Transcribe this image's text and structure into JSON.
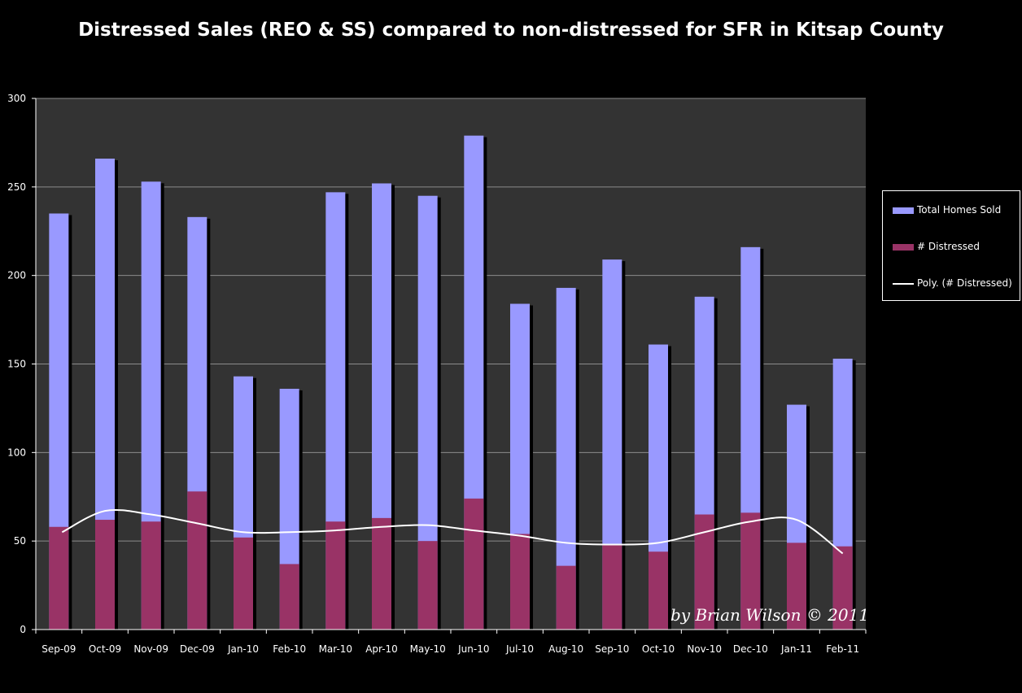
{
  "title": "Distressed Sales (REO & SS) compared to non-distressed for SFR in Kitsap County",
  "watermark": "by Brian Wilson © 2011",
  "legend": {
    "items": [
      {
        "label": "Total Homes Sold",
        "kind": "bar",
        "color": "#9999FF"
      },
      {
        "label": "# Distressed",
        "kind": "bar",
        "color": "#993366"
      },
      {
        "label": "Poly. (# Distressed)",
        "kind": "line",
        "color": "#FFFFFF"
      }
    ]
  },
  "colors": {
    "total": "#9999FF",
    "distressed": "#993366",
    "trend": "#FFFFFF",
    "plot_bg": "#333333",
    "grid": "#8C8C8C",
    "shadow": "#000000"
  },
  "chart_data": {
    "type": "bar",
    "title": "Distressed Sales (REO & SS) compared to non-distressed for SFR in Kitsap County",
    "xlabel": "",
    "ylabel": "",
    "ylim": [
      0,
      300
    ],
    "yticks": [
      0,
      50,
      100,
      150,
      200,
      250,
      300
    ],
    "grid": true,
    "legend_position": "right",
    "categories": [
      "Sep-09",
      "Oct-09",
      "Nov-09",
      "Dec-09",
      "Jan-10",
      "Feb-10",
      "Mar-10",
      "Apr-10",
      "May-10",
      "Jun-10",
      "Jul-10",
      "Aug-10",
      "Sep-10",
      "Oct-10",
      "Nov-10",
      "Dec-10",
      "Jan-11",
      "Feb-11"
    ],
    "series": [
      {
        "name": "Total Homes Sold",
        "type": "bar",
        "values": [
          235,
          266,
          253,
          233,
          143,
          136,
          247,
          252,
          245,
          279,
          184,
          193,
          209,
          161,
          188,
          216,
          127,
          153
        ]
      },
      {
        "name": "# Distressed",
        "type": "bar",
        "values": [
          58,
          62,
          61,
          78,
          52,
          37,
          61,
          63,
          50,
          74,
          54,
          36,
          48,
          44,
          65,
          66,
          49,
          47
        ]
      },
      {
        "name": "Poly. (# Distressed)",
        "type": "line",
        "values": [
          55,
          67,
          65,
          60,
          55,
          55,
          56,
          58,
          59,
          56,
          53,
          49,
          48,
          49,
          55,
          61,
          62,
          43
        ]
      }
    ]
  }
}
